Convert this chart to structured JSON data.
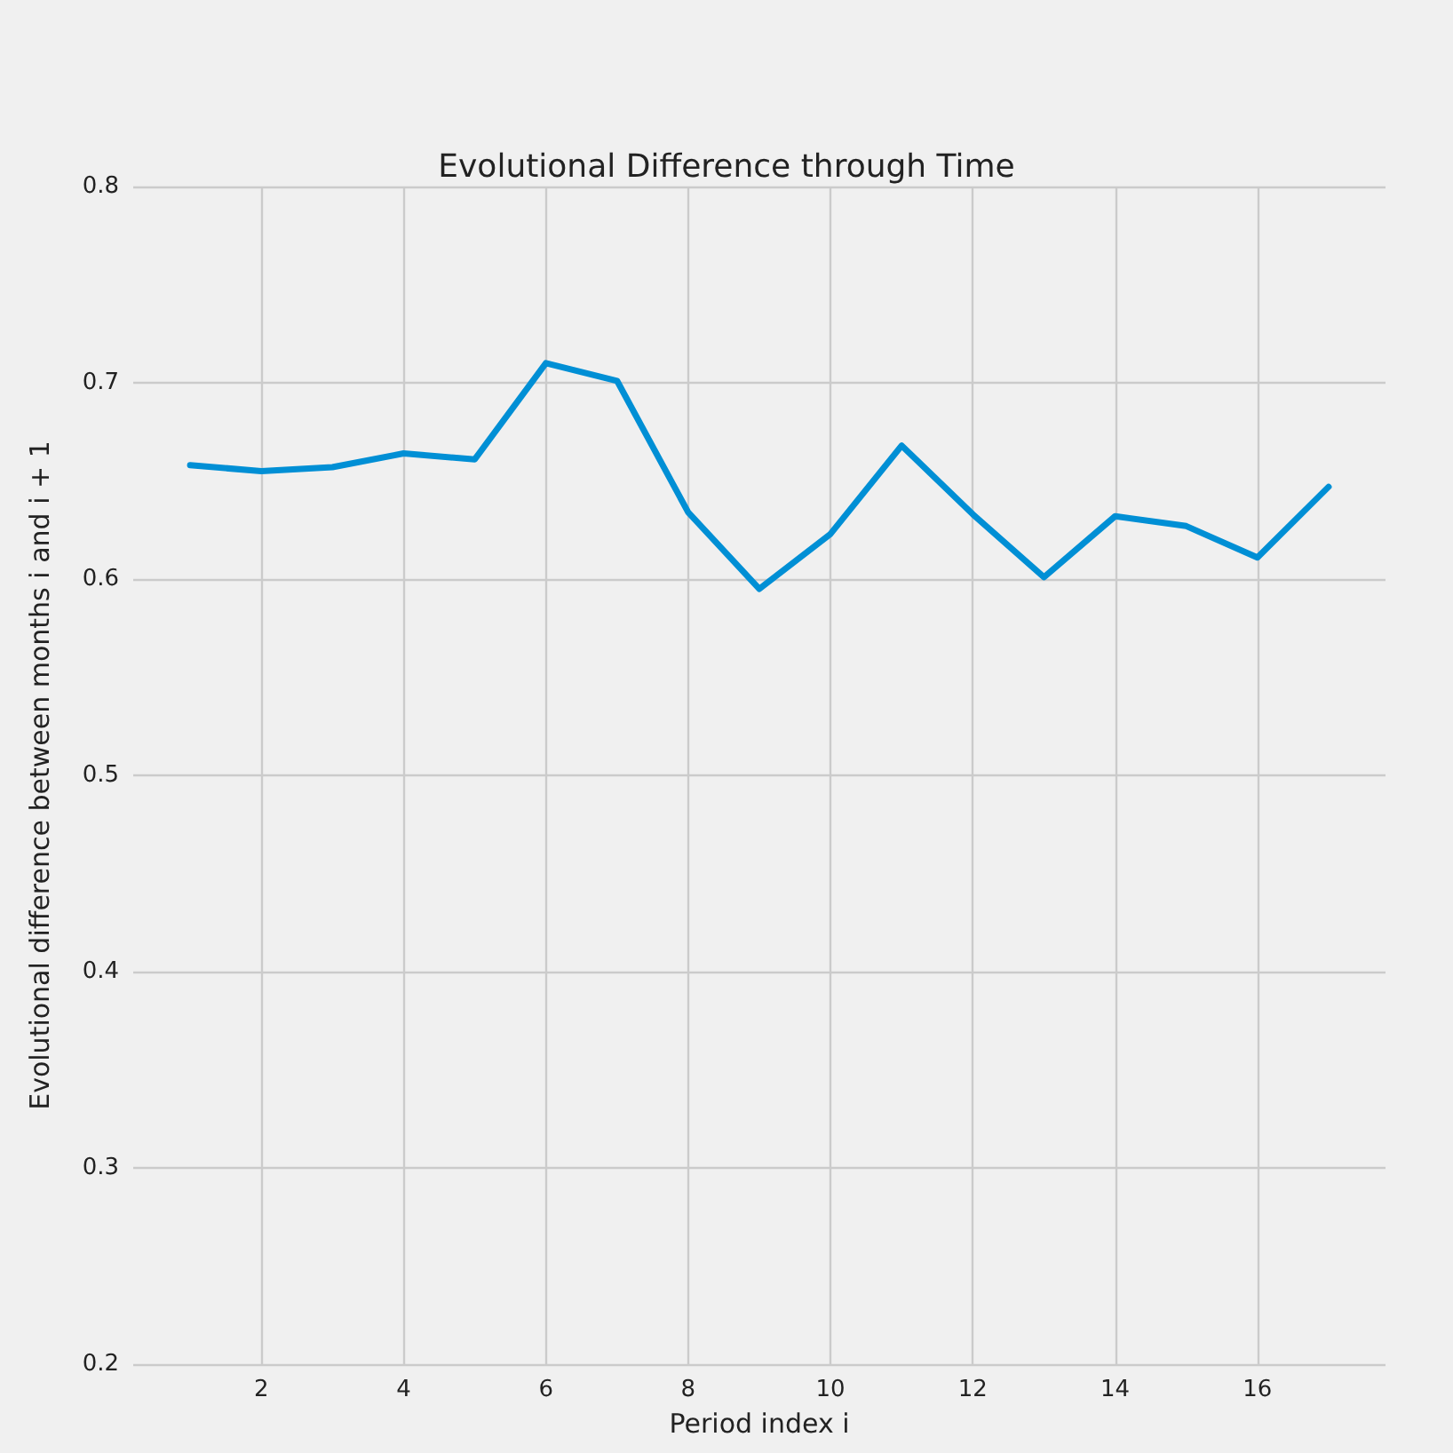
{
  "chart_data": {
    "type": "line",
    "title": "Evolutional Difference through Time",
    "xlabel": "Period index i",
    "ylabel": "Evolutional difference between months i and i + 1",
    "x": [
      1,
      2,
      3,
      4,
      5,
      6,
      7,
      8,
      9,
      10,
      11,
      12,
      13,
      14,
      15,
      16,
      17
    ],
    "series": [
      {
        "color": "#008fd5",
        "values": [
          0.658,
          0.655,
          0.657,
          0.664,
          0.661,
          0.71,
          0.701,
          0.634,
          0.595,
          0.623,
          0.668,
          0.633,
          0.601,
          0.632,
          0.627,
          0.611,
          0.647
        ]
      }
    ],
    "xlim": [
      0.2,
      17.8
    ],
    "xticks": [
      2,
      4,
      6,
      8,
      10,
      12,
      14,
      16
    ],
    "ylim": [
      0.2,
      0.8
    ],
    "yticks": [
      0.2,
      0.3,
      0.4,
      0.5,
      0.6,
      0.7,
      0.8
    ],
    "grid": true,
    "marker": "none",
    "line_style": "solid"
  }
}
